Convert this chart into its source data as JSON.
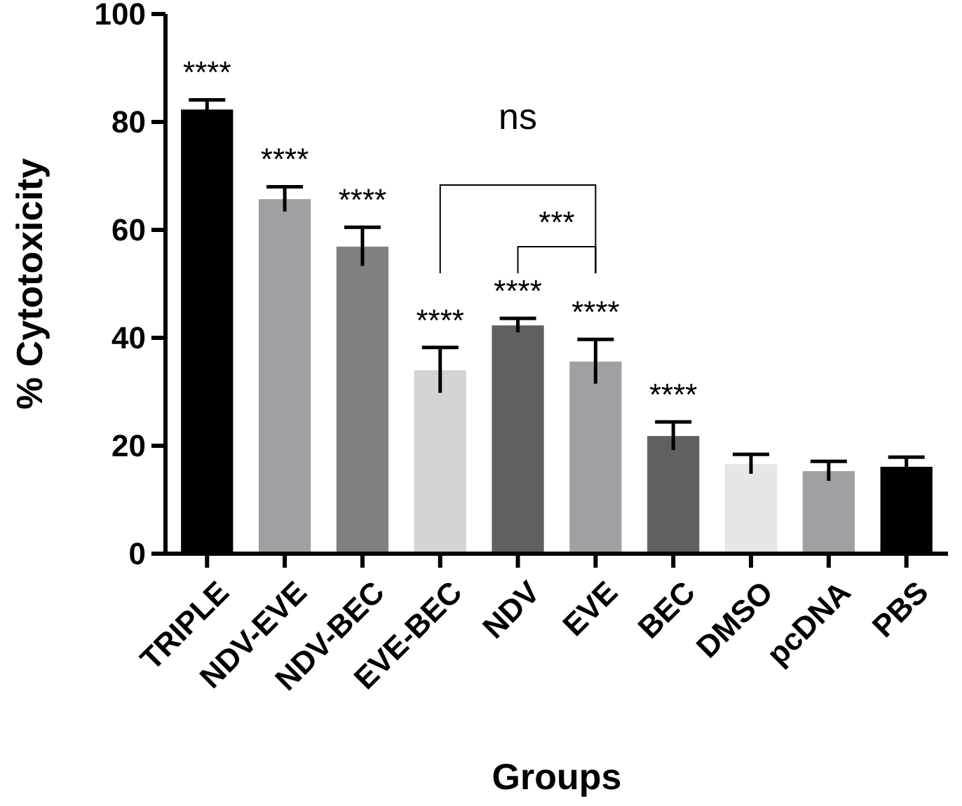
{
  "chart_data": {
    "type": "bar",
    "xlabel": "Groups",
    "ylabel": "% Cytotoxicity",
    "categories": [
      "TRIPLE",
      "NDV-EVE",
      "NDV-BEC",
      "EVE-BEC",
      "NDV",
      "EVE",
      "BEC",
      "DMSO",
      "pcDNA",
      "PBS"
    ],
    "values": [
      82.3,
      65.7,
      56.9,
      34,
      42.3,
      35.6,
      21.8,
      16.6,
      15.3,
      16.1
    ],
    "errors": [
      1.8,
      2.3,
      3.6,
      4.2,
      1.3,
      4.1,
      2.6,
      1.8,
      1.8,
      1.8
    ],
    "colors": [
      "#000000",
      "#a0a0a4",
      "#808080",
      "#d4d4d4",
      "#606060",
      "#a0a0a4",
      "#606060",
      "#e6e6e6",
      "#a0a0a4",
      "#000000"
    ],
    "ylim": [
      0,
      100
    ],
    "yticks": [
      0,
      20,
      40,
      60,
      80,
      100
    ],
    "annotations": [
      "****",
      "****",
      "****",
      "****",
      "****",
      "****",
      "****",
      "ns",
      "***"
    ]
  }
}
